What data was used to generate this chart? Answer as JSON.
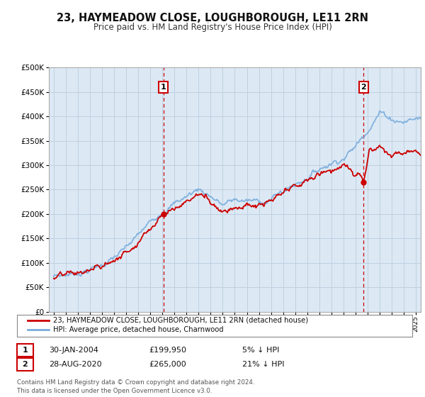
{
  "title": "23, HAYMEADOW CLOSE, LOUGHBOROUGH, LE11 2RN",
  "subtitle": "Price paid vs. HM Land Registry's House Price Index (HPI)",
  "legend_line1": "23, HAYMEADOW CLOSE, LOUGHBOROUGH, LE11 2RN (detached house)",
  "legend_line2": "HPI: Average price, detached house, Charnwood",
  "footnote": "Contains HM Land Registry data © Crown copyright and database right 2024.\nThis data is licensed under the Open Government Licence v3.0.",
  "sale1_date": "30-JAN-2004",
  "sale1_price": "£199,950",
  "sale1_hpi": "5% ↓ HPI",
  "sale2_date": "28-AUG-2020",
  "sale2_price": "£265,000",
  "sale2_hpi": "21% ↓ HPI",
  "sale1_x": 2004.08,
  "sale1_y": 199950,
  "sale2_x": 2020.67,
  "sale2_y": 265000,
  "hpi_color": "#7aacdc",
  "price_color": "#cc0000",
  "sale_marker_color": "#cc0000",
  "bg_color": "#dce9f5",
  "ylim": [
    0,
    500000
  ],
  "xlim_start": 1994.6,
  "xlim_end": 2025.4,
  "grid_color": "#c0d0e0",
  "vline_color": "#cc0000",
  "box_color": "#cc0000",
  "hpi_years": [
    1995,
    1996,
    1997,
    1998,
    1999,
    2000,
    2001,
    2002,
    2003,
    2004,
    2005,
    2006,
    2007,
    2008,
    2009,
    2010,
    2011,
    2012,
    2013,
    2014,
    2015,
    2016,
    2017,
    2018,
    2019,
    2020,
    2021,
    2022,
    2023,
    2024,
    2025
  ],
  "hpi_vals": [
    72000,
    76000,
    80000,
    87000,
    96000,
    110000,
    128000,
    155000,
    182000,
    210000,
    222000,
    236000,
    252000,
    238000,
    218000,
    228000,
    226000,
    224000,
    230000,
    246000,
    260000,
    276000,
    292000,
    306000,
    316000,
    337000,
    375000,
    408000,
    395000,
    388000,
    395000
  ],
  "red_vals": [
    68000,
    72000,
    76000,
    83000,
    91000,
    104000,
    121000,
    147000,
    172000,
    199950,
    210000,
    224000,
    238000,
    224000,
    206000,
    215000,
    213000,
    211000,
    217000,
    231000,
    245000,
    260000,
    275000,
    287000,
    297000,
    265000,
    315000,
    335000,
    320000,
    315000,
    320000
  ]
}
